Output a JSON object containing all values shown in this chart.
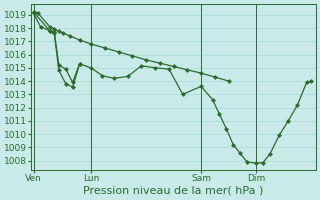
{
  "background_color": "#caeaea",
  "grid_color": "#aed8d8",
  "line_color": "#2d6a2d",
  "marker_color": "#2d6a2d",
  "ylim": [
    1007.3,
    1019.8
  ],
  "yticks": [
    1008,
    1009,
    1010,
    1011,
    1012,
    1013,
    1014,
    1015,
    1016,
    1017,
    1018,
    1019
  ],
  "xlabel": "Pression niveau de la mer( hPa )",
  "xlabel_fontsize": 8,
  "tick_fontsize": 6.5,
  "xtick_labels": [
    "Ven",
    "Lun",
    "Sam",
    "Dim"
  ],
  "xtick_positions": [
    2,
    52,
    148,
    196
  ],
  "vline_positions": [
    2,
    52,
    148,
    196
  ],
  "xlim": [
    0,
    248
  ],
  "line1_x": [
    2,
    6,
    16,
    20,
    24,
    28,
    34,
    42,
    52,
    64,
    76,
    88,
    100,
    112,
    124,
    136,
    148,
    160,
    172
  ],
  "line1_y": [
    1019.2,
    1019.1,
    1018.1,
    1017.9,
    1017.75,
    1017.6,
    1017.4,
    1017.1,
    1016.8,
    1016.5,
    1016.2,
    1015.9,
    1015.6,
    1015.35,
    1015.1,
    1014.85,
    1014.6,
    1014.3,
    1014.0
  ],
  "line2_x": [
    2,
    8,
    16,
    20,
    24,
    30,
    36,
    42,
    52,
    62,
    72,
    84,
    96,
    108,
    120,
    132,
    148,
    158,
    164,
    170,
    176,
    182,
    188,
    196,
    202,
    208,
    216,
    224,
    232,
    240,
    244
  ],
  "line2_y": [
    1019.1,
    1018.1,
    1017.8,
    1017.7,
    1015.2,
    1014.9,
    1013.9,
    1015.3,
    1015.0,
    1014.4,
    1014.2,
    1014.35,
    1015.15,
    1015.0,
    1014.9,
    1013.0,
    1013.6,
    1012.6,
    1011.5,
    1010.4,
    1009.2,
    1008.55,
    1007.9,
    1007.8,
    1007.85,
    1008.5,
    1009.9,
    1011.0,
    1012.2,
    1013.9,
    1014.0
  ],
  "line3_x": [
    2,
    16,
    20,
    24,
    30,
    36,
    42
  ],
  "line3_y": [
    1019.2,
    1017.8,
    1017.6,
    1014.8,
    1013.8,
    1013.55,
    1015.25
  ]
}
